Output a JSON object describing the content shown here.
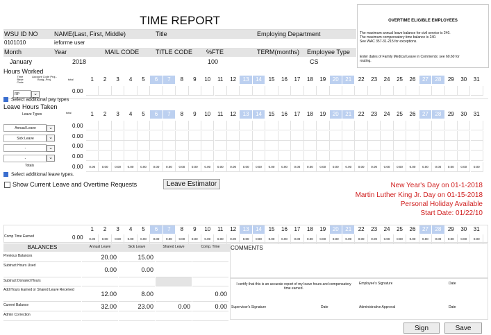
{
  "header": {
    "title": "TIME REPORT",
    "ot_title": "OVERTIME ELIGIBLE EMPLOYEES",
    "ot_note": [
      "The maximum annual leave balance for civil service is 240.",
      "The maximum compensatory time balance is 240.",
      "See WAC 357-31-215 for exceptions."
    ],
    "fml_note": [
      "Enter dates of Family Medical Leave in Comments: see 60.60 for",
      "routing."
    ]
  },
  "emp": {
    "l_id": "WSU ID NO",
    "l_name": "NAME(Last, First, Middle)",
    "l_title": "Title",
    "l_dept": "Employing Department",
    "id": "0101010",
    "name": "ieforme user",
    "l_month": "Month",
    "l_year": "Year",
    "l_mail": "MAIL CODE",
    "l_tcode": "TITLE CODE",
    "l_fte": "%FTE",
    "l_term": "TERM(months)",
    "l_etype": "Employee Type",
    "month": "January",
    "year": "2018",
    "fte": "100",
    "etype": "CS"
  },
  "hours": {
    "title": "Hours Worked",
    "h1": "Time Base Code",
    "h2": "Account Code Proj.-Budg.-Proj.",
    "h3": "total",
    "code": "RP",
    "total": "0.00",
    "link": "Select additional pay types"
  },
  "days": [
    "1",
    "2",
    "3",
    "4",
    "5",
    "6",
    "7",
    "8",
    "9",
    "10",
    "11",
    "12",
    "13",
    "14",
    "15",
    "16",
    "17",
    "18",
    "19",
    "20",
    "21",
    "22",
    "23",
    "24",
    "25",
    "26",
    "27",
    "28",
    "29",
    "30",
    "31"
  ],
  "weekend": [
    6,
    7,
    13,
    14,
    20,
    21,
    27,
    28
  ],
  "leave": {
    "title": "Leave Hours Taken",
    "h1": "Leave Types",
    "h2": "total",
    "rows": [
      {
        "type": "Annual Leave",
        "total": "0.00"
      },
      {
        "type": "Sick Leave",
        "total": "0.00"
      },
      {
        "type": "-",
        "total": "0.00"
      },
      {
        "type": "-",
        "total": "0.00"
      }
    ],
    "totals_label": "Totals",
    "totals_total": "0.00",
    "zero": "0.00",
    "link": "Select additional leave types."
  },
  "show_label": "Show Current Leave and Overtime Requests",
  "estimator": "Leave Estimator",
  "notices": [
    "New Year's Day on 01-1-2018",
    "Martin Luther King Jr. Day on 01-15-2018",
    "Personal Holiday Available",
    "Start Date: 01/22/10"
  ],
  "comp": {
    "label": "Comp Time Earned",
    "total": "0.00"
  },
  "balances": {
    "title": "BALANCES",
    "cols": [
      "Annual Leave",
      "Sick Leave",
      "Shared Leave",
      "Comp. Time"
    ],
    "comments": "COMMENTS",
    "rows": [
      {
        "label": "Previous Balances",
        "vals": [
          "20.00",
          "15.00",
          "",
          ""
        ]
      },
      {
        "label": "Subtract Hours Used",
        "vals": [
          "0.00",
          "0.00",
          "",
          ""
        ]
      },
      {
        "label": "Subtract Donated Hours",
        "vals": [
          "",
          "",
          "",
          ""
        ]
      },
      {
        "label": "Add Hours Earned or Shared Leave Received",
        "vals": [
          "12.00",
          "8.00",
          "",
          "0.00"
        ]
      },
      {
        "label": "Current Balance",
        "vals": [
          "32.00",
          "23.00",
          "0.00",
          "0.00"
        ]
      },
      {
        "label": "Admin Correction",
        "vals": [
          "",
          "",
          "",
          ""
        ]
      }
    ]
  },
  "cert": {
    "text": "I certify that this is an accurate report of my leave hours and compensatory time earned.",
    "emp_sig": "Employee's Signature",
    "date": "Date",
    "sup_sig": "Supervisor's Signature",
    "admin": "Administrative Approval"
  },
  "actions": {
    "sign": "Sign",
    "save": "Save"
  }
}
